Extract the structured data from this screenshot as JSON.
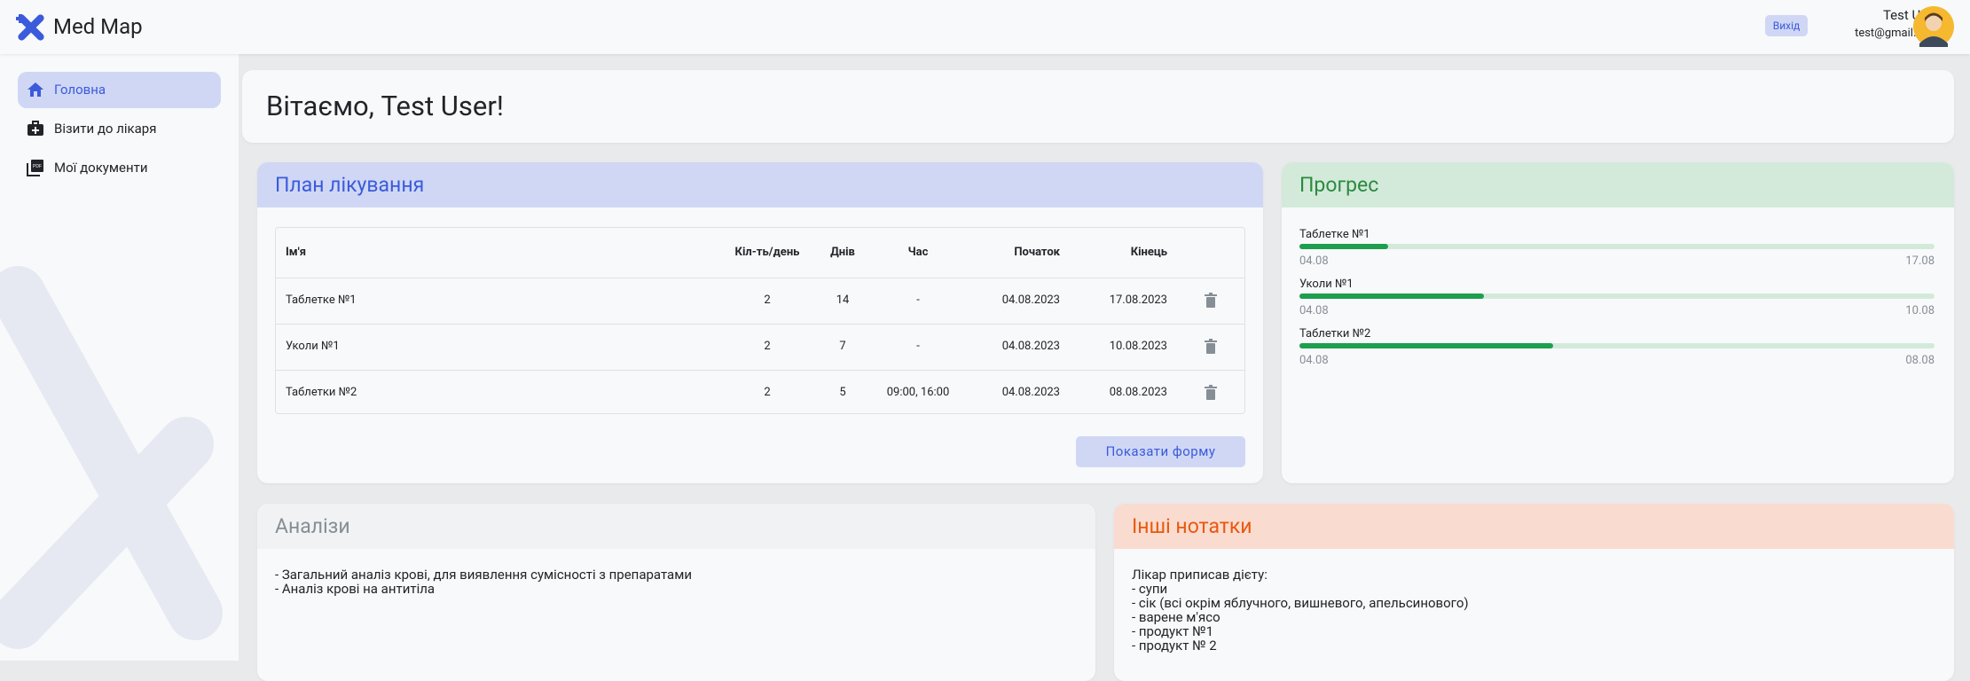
{
  "header": {
    "brand": "Med Map",
    "logout": "Вихід",
    "user_name": "Test User",
    "user_email": "test@gmail.com"
  },
  "sidebar": {
    "items": [
      "Головна",
      "Візити до лікаря",
      "Мої документи"
    ]
  },
  "welcome": "Вітаємо, Test User!",
  "plan": {
    "title": "План лікування",
    "columns": [
      "Ім'я",
      "Кіл-ть/день",
      "Днів",
      "Час",
      "Початок",
      "Кінець"
    ],
    "rows": [
      [
        "Таблетке №1",
        "2",
        "14",
        "-",
        "04.08.2023",
        "17.08.2023"
      ],
      [
        "Уколи №1",
        "2",
        "7",
        "-",
        "04.08.2023",
        "10.08.2023"
      ],
      [
        "Таблетки №2",
        "2",
        "5",
        "09:00, 16:00",
        "04.08.2023",
        "08.08.2023"
      ]
    ],
    "button": "Показати форму"
  },
  "progress": {
    "title": "Прогрес",
    "items": [
      {
        "name": "Таблетке №1",
        "start": "04.08",
        "end": "17.08",
        "percent": 14
      },
      {
        "name": "Уколи №1",
        "start": "04.08",
        "end": "10.08",
        "percent": 29
      },
      {
        "name": "Таблетки №2",
        "start": "04.08",
        "end": "08.08",
        "percent": 40
      }
    ]
  },
  "analyses": {
    "title": "Аналізи",
    "lines": [
      "- Загальний аналіз крові, для виявлення сумісності з препаратами",
      "- Аналіз крові на антитіла"
    ]
  },
  "notes": {
    "title": "Інші нотатки",
    "lines": [
      "Лікар приписав дієту:",
      "- супи",
      "- сік (всі окрім яблучного, вишневого, апельсинового)",
      "- варене м'ясо",
      "- продукт №1",
      "- продукт № 2"
    ]
  }
}
